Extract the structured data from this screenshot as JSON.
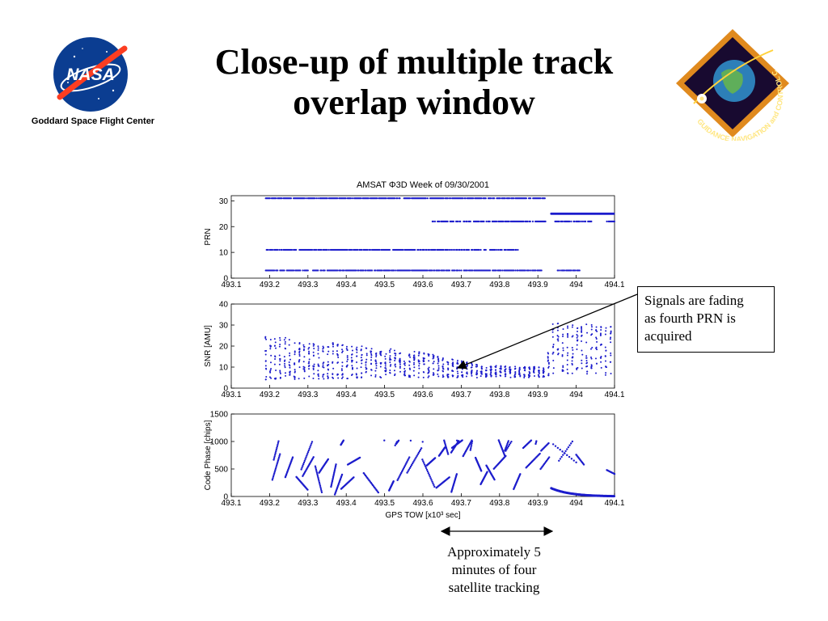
{
  "header": {
    "title_line1": "Close-up of multiple track",
    "title_line2": "overlap window",
    "org_caption": "Goddard Space Flight Center",
    "nasa_logo_text": "NASA",
    "gnc_logo_text": "GUIDANCE NAVIGATION and CONTROL CENTER"
  },
  "annotations": {
    "fading_note_lines": [
      "Signals are fading",
      "as fourth PRN is",
      "acquired"
    ],
    "window_note_lines": [
      "Approximately 5",
      "minutes of four",
      "satellite tracking"
    ]
  },
  "colors": {
    "data": "#1c1ccc",
    "axis": "#000000",
    "title_text": "#000000"
  },
  "chart_data": [
    {
      "type": "scatter",
      "title": "AMSAT Φ3D Week of 09/30/2001",
      "ylabel": "PRN",
      "xlim": [
        493.1,
        494.1
      ],
      "ylim": [
        0,
        32
      ],
      "xticks": [
        "493.1",
        "493.2",
        "493.3",
        "493.4",
        "493.5",
        "493.6",
        "493.7",
        "493.8",
        "493.9",
        "494",
        "494.1"
      ],
      "yticks": [
        "0",
        "10",
        "20",
        "30"
      ],
      "ytick_values": [
        0,
        10,
        20,
        30
      ],
      "series": [
        {
          "prn": 31,
          "segments": [
            [
              493.19,
              493.92
            ]
          ]
        },
        {
          "prn": 22,
          "segments": [
            [
              493.625,
              493.92
            ],
            [
              493.945,
              494.04
            ],
            [
              494.08,
              494.1
            ]
          ]
        },
        {
          "prn": 11,
          "segments": [
            [
              493.19,
              493.85
            ]
          ]
        },
        {
          "prn": 3,
          "segments": [
            [
              493.19,
              493.915
            ],
            [
              493.945,
              494.015
            ]
          ]
        },
        {
          "prn": 25,
          "segments": [
            [
              493.935,
              494.1
            ]
          ]
        }
      ]
    },
    {
      "type": "scatter",
      "ylabel": "SNR [AMU]",
      "xlim": [
        493.1,
        494.1
      ],
      "ylim": [
        0,
        40
      ],
      "xticks": [
        "493.1",
        "493.2",
        "493.3",
        "493.4",
        "493.5",
        "493.6",
        "493.7",
        "493.8",
        "493.9",
        "494",
        "494.1"
      ],
      "yticks": [
        "0",
        "10",
        "20",
        "30",
        "40"
      ],
      "ytick_values": [
        0,
        10,
        20,
        30,
        40
      ],
      "envelope": [
        {
          "x": 493.19,
          "min": 4,
          "max": 25
        },
        {
          "x": 493.6,
          "min": 5,
          "max": 17
        },
        {
          "x": 493.75,
          "min": 5,
          "max": 11
        },
        {
          "x": 493.92,
          "min": 5,
          "max": 10
        },
        {
          "x": 493.935,
          "min": 7,
          "max": 31
        },
        {
          "x": 494.1,
          "min": 6,
          "max": 30
        }
      ]
    },
    {
      "type": "scatter",
      "xlabel": "GPS TOW [x10³ sec]",
      "ylabel": "Code Phase [chips]",
      "xlim": [
        493.1,
        494.1
      ],
      "ylim": [
        0,
        1500
      ],
      "xticks": [
        "493.1",
        "493.2",
        "493.3",
        "493.4",
        "493.5",
        "493.6",
        "493.7",
        "493.8",
        "493.9",
        "494",
        "494.1"
      ],
      "yticks": [
        "0",
        "500",
        "1000",
        "1500"
      ],
      "ytick_values": [
        0,
        500,
        1000,
        1500
      ],
      "code_phase_range": [
        0,
        1023
      ]
    }
  ]
}
